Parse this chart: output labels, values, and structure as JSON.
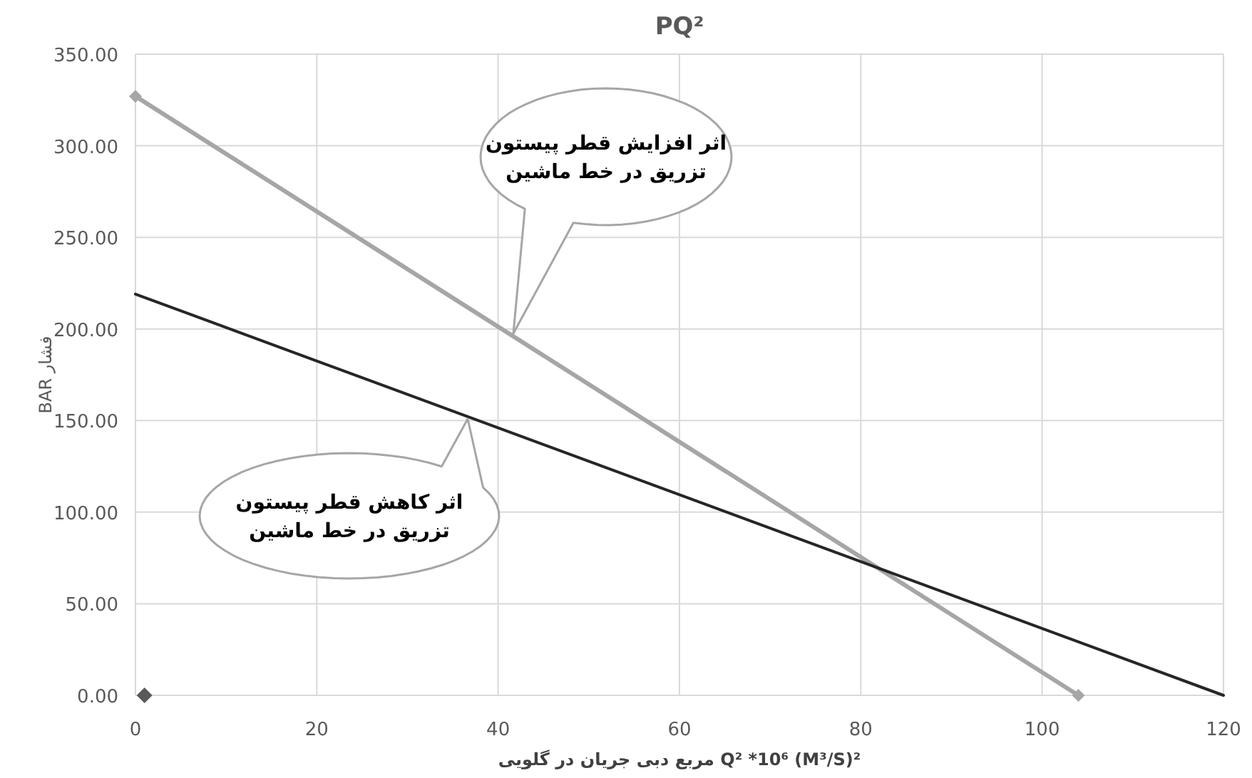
{
  "chart_data": {
    "type": "line",
    "title": "PQ²",
    "xlabel": "مربع دبی جریان در گلویی Q² *10⁶ (M³/S)²",
    "ylabel": "BAR فشار",
    "xlim": [
      0,
      120
    ],
    "xticks": [
      0,
      20,
      40,
      60,
      80,
      100,
      120
    ],
    "ylim": [
      0,
      350
    ],
    "yticks": [
      {
        "value": 0,
        "label": "0.00"
      },
      {
        "value": 50,
        "label": "50.00"
      },
      {
        "value": 100,
        "label": "100.00"
      },
      {
        "value": 150,
        "label": "150.00"
      },
      {
        "value": 200,
        "label": "200.00"
      },
      {
        "value": 250,
        "label": "250.00"
      },
      {
        "value": 300,
        "label": "300.00"
      },
      {
        "value": 350,
        "label": "350.00"
      }
    ],
    "grid": true,
    "series": [
      {
        "color": "#a6a6a6",
        "x": [
          0,
          104
        ],
        "values": [
          327,
          0
        ],
        "marker": "diamond"
      },
      {
        "color": "#262626",
        "x": [
          0,
          120
        ],
        "values": [
          219,
          0
        ],
        "marker": "none"
      },
      {
        "type": "scatter",
        "color": "#595959",
        "x": [
          1
        ],
        "values": [
          0
        ],
        "marker": "diamond"
      }
    ],
    "annotations": [
      "اثر افزایش قطر پیستون\nتزریق در خط ماشین",
      "اثر کاهش قطر پیستون\nتزریق در خط ماشین"
    ]
  }
}
